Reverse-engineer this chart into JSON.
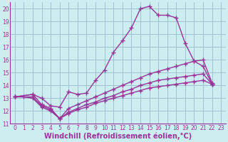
{
  "bg_color": "#cceef0",
  "grid_color": "#99bbcc",
  "line_color": "#993399",
  "marker": "+",
  "markersize": 4,
  "linewidth": 1.0,
  "xlim_min": -0.5,
  "xlim_max": 23.5,
  "ylim_min": 11,
  "ylim_max": 20.5,
  "xticks": [
    0,
    1,
    2,
    3,
    4,
    5,
    6,
    7,
    8,
    9,
    10,
    11,
    12,
    13,
    14,
    15,
    16,
    17,
    18,
    19,
    20,
    21,
    22,
    23
  ],
  "yticks": [
    11,
    12,
    13,
    14,
    15,
    16,
    17,
    18,
    19,
    20
  ],
  "xlabel": "Windchill (Refroidissement éolien,°C)",
  "xlabel_fontsize": 7,
  "tick_fontsize": 5.5,
  "series": [
    {
      "x": [
        0,
        2,
        3,
        4,
        5,
        6,
        7,
        8,
        9,
        10,
        11,
        12,
        13,
        14,
        15,
        16,
        17,
        18,
        19,
        20,
        21,
        22
      ],
      "y": [
        13.1,
        13.3,
        13.0,
        12.4,
        12.3,
        13.5,
        13.3,
        13.4,
        14.4,
        15.2,
        16.6,
        17.5,
        18.5,
        20.0,
        20.2,
        19.5,
        19.5,
        19.3,
        17.3,
        15.9,
        15.5,
        14.1
      ]
    },
    {
      "x": [
        0,
        2,
        3,
        4,
        5,
        6,
        7,
        8,
        9,
        10,
        11,
        12,
        13,
        14,
        15,
        16,
        17,
        18,
        19,
        20,
        21,
        22
      ],
      "y": [
        13.1,
        13.3,
        12.5,
        12.2,
        11.4,
        12.2,
        12.5,
        12.8,
        13.1,
        13.4,
        13.7,
        14.0,
        14.3,
        14.6,
        14.9,
        15.1,
        15.3,
        15.5,
        15.7,
        15.9,
        16.0,
        14.2
      ]
    },
    {
      "x": [
        0,
        2,
        3,
        4,
        5,
        6,
        7,
        8,
        9,
        10,
        11,
        12,
        13,
        14,
        15,
        16,
        17,
        18,
        19,
        20,
        21,
        22
      ],
      "y": [
        13.1,
        13.1,
        12.4,
        12.1,
        11.4,
        11.9,
        12.2,
        12.5,
        12.7,
        13.0,
        13.2,
        13.5,
        13.7,
        14.0,
        14.2,
        14.4,
        14.5,
        14.6,
        14.7,
        14.8,
        14.9,
        14.1
      ]
    },
    {
      "x": [
        1,
        2,
        3,
        4,
        5,
        6,
        7,
        8,
        9,
        10,
        11,
        12,
        13,
        14,
        15,
        16,
        17,
        18,
        19,
        20,
        21,
        22
      ],
      "y": [
        13.1,
        13.0,
        12.3,
        12.0,
        11.4,
        11.8,
        12.1,
        12.3,
        12.6,
        12.8,
        13.0,
        13.2,
        13.4,
        13.6,
        13.8,
        13.9,
        14.0,
        14.1,
        14.2,
        14.3,
        14.4,
        14.1
      ]
    }
  ]
}
